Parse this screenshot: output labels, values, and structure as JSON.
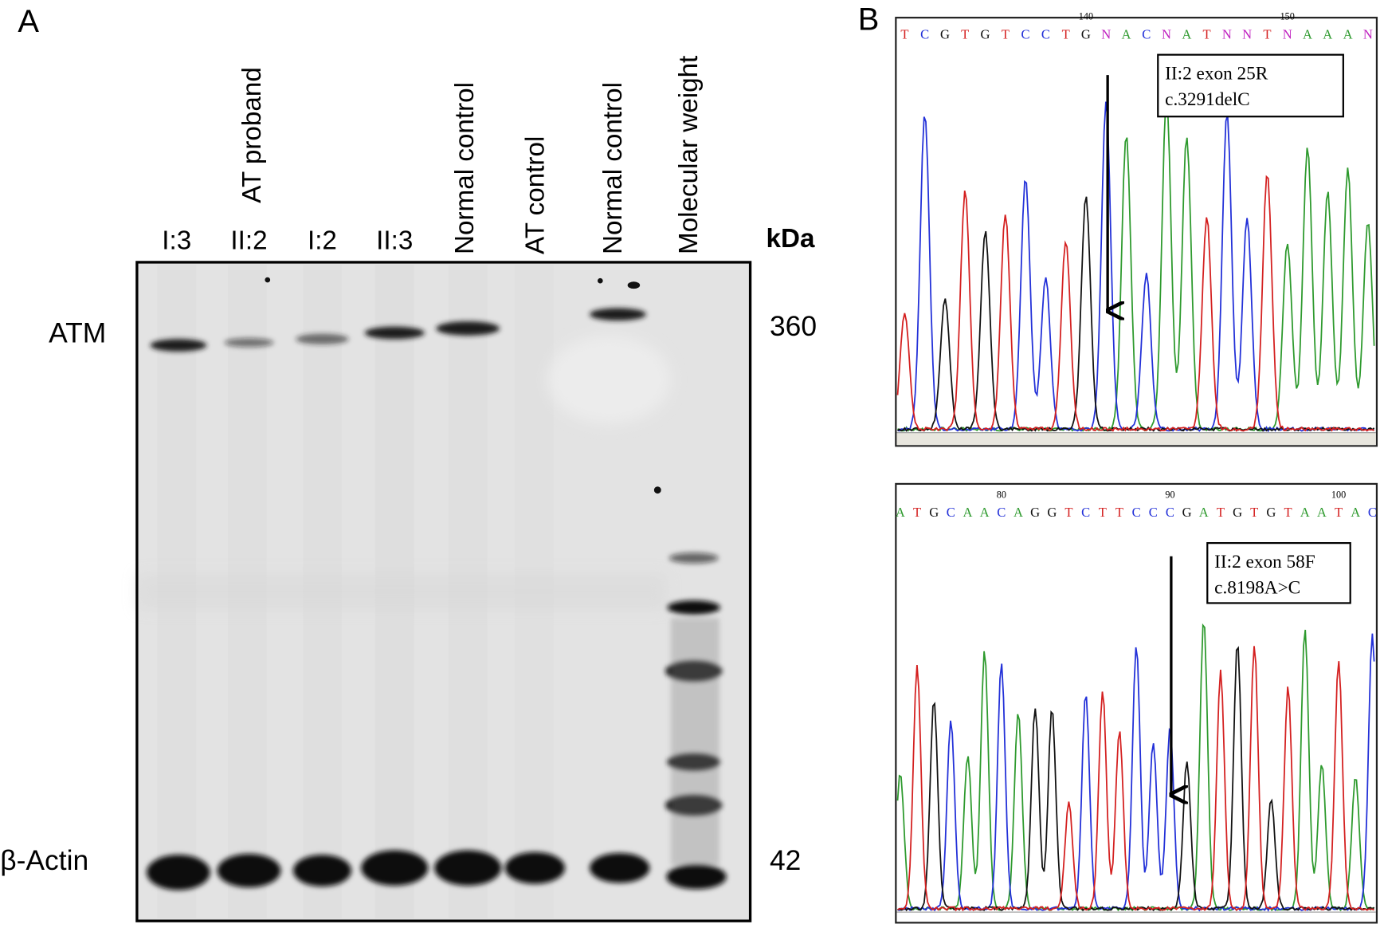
{
  "panel_a": {
    "label": "A",
    "lane_labels": [
      "I:3",
      "II:2",
      "I:2",
      "II:3",
      "Normal control",
      "AT control",
      "Normal control",
      "Molecular weight"
    ],
    "upper_label": "AT proband",
    "unit": "kDa",
    "bands": [
      {
        "name": "ATM",
        "size": 360
      },
      {
        "name": "β-Actin",
        "size": 42
      }
    ]
  },
  "panel_b": {
    "label": "B",
    "traces": [
      {
        "positions": [
          140,
          150
        ],
        "sequence": [
          "T",
          "C",
          "G",
          "T",
          "G",
          "T",
          "C",
          "C",
          "T",
          "G",
          "N",
          "A",
          "C",
          "N",
          "A",
          "T",
          "N",
          "N",
          "T",
          "N",
          "A",
          "A",
          "A",
          "N"
        ],
        "annotation": [
          "II:2 exon 25R",
          "c.3291delC"
        ]
      },
      {
        "positions": [
          80,
          90,
          100
        ],
        "sequence": [
          "A",
          "T",
          "G",
          "C",
          "A",
          "A",
          "C",
          "A",
          "G",
          "G",
          "T",
          "C",
          "T",
          "T",
          "C",
          "C",
          "C",
          "G",
          "A",
          "T",
          "G",
          "T",
          "G",
          "T",
          "A",
          "A",
          "T",
          "A",
          "C"
        ],
        "annotation": [
          "II:2 exon 58F",
          "c.8198A>C"
        ]
      }
    ]
  }
}
